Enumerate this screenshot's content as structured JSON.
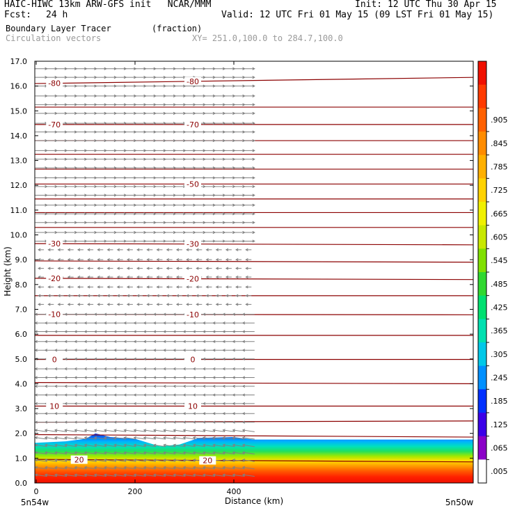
{
  "header": {
    "title": "HAIC-HIWC 13km ARW-GFS init   NCAR/MMM",
    "init": "Init: 12 UTC Thu 30 Apr 15",
    "fcst_label": "Fcst:",
    "fcst_value": "24 h",
    "valid": "Valid: 12 UTC Fri 01 May 15 (09 LST Fri 01 May 15)",
    "field_name": "Boundary Layer Tracer",
    "field_units": "(fraction)",
    "vector_name": "Circulation vectors",
    "xsec": "XY= 251.0,100.0 to 284.7,100.0"
  },
  "colors": {
    "contour": "#8b0000",
    "vector": "#808080",
    "colorbar": [
      "#ffffff",
      "#8b00c8",
      "#3b00e8",
      "#0030ff",
      "#0090ff",
      "#00c8e8",
      "#00e0b0",
      "#00e070",
      "#30d830",
      "#80e000",
      "#c8e800",
      "#f0f000",
      "#ffd200",
      "#ffb000",
      "#ff8c00",
      "#ff6000",
      "#ff3a00",
      "#f01000"
    ]
  },
  "chart_data": {
    "type": "cross-section",
    "xlabel": "Distance (km)",
    "ylabel": "Height (km)",
    "xlim": [
      0,
      440
    ],
    "ylim": [
      0.0,
      17.0
    ],
    "x_ticks": [
      0,
      200,
      400
    ],
    "x_tick_labels": [
      "0",
      "200",
      "400"
    ],
    "x_end_labels": [
      "5n54w",
      "5n50w"
    ],
    "y_ticks": [
      0.0,
      1.0,
      2.0,
      3.0,
      4.0,
      5.0,
      6.0,
      7.0,
      8.0,
      9.0,
      10.0,
      11.0,
      12.0,
      13.0,
      14.0,
      15.0,
      16.0,
      17.0
    ],
    "y_tick_labels": [
      "0.0",
      "1.0",
      "2.0",
      "3.0",
      "4.0",
      "5.0",
      "6.0",
      "7.0",
      "8.0",
      "9.0",
      "10.0",
      "11.0",
      "12.0",
      "13.0",
      "14.0",
      "15.0",
      "16.0",
      "17.0"
    ],
    "colorbar_labels": [
      ".005",
      ".065",
      ".125",
      ".185",
      ".245",
      ".305",
      ".365",
      ".425",
      ".485",
      ".545",
      ".605",
      ".665",
      ".725",
      ".785",
      ".845",
      ".905"
    ],
    "colorbar_levels": [
      0.005,
      0.065,
      0.125,
      0.185,
      0.245,
      0.305,
      0.365,
      0.425,
      0.485,
      0.545,
      0.605,
      0.665,
      0.725,
      0.785,
      0.845,
      0.905
    ],
    "tracer_top_km": [
      {
        "x": 0,
        "z": 1.62
      },
      {
        "x": 60,
        "z": 1.68
      },
      {
        "x": 100,
        "z": 1.78
      },
      {
        "x": 120,
        "z": 2.0
      },
      {
        "x": 150,
        "z": 1.85
      },
      {
        "x": 200,
        "z": 1.78
      },
      {
        "x": 250,
        "z": 1.48
      },
      {
        "x": 290,
        "z": 1.55
      },
      {
        "x": 330,
        "z": 1.82
      },
      {
        "x": 400,
        "z": 1.85
      },
      {
        "x": 440,
        "z": 1.75
      }
    ],
    "temperature_contours": [
      {
        "label": "20",
        "z0": 0.95,
        "z1": 0.85,
        "label_x": [
          70,
          330
        ]
      },
      {
        "label": "",
        "z0": 1.95,
        "z1": 1.85,
        "label_x": []
      },
      {
        "label": "",
        "z0": 2.45,
        "z1": 2.5,
        "label_x": []
      },
      {
        "label": "10",
        "z0": 3.1,
        "z1": 3.1,
        "label_x": [
          20,
          300
        ]
      },
      {
        "label": "",
        "z0": 4.05,
        "z1": 4.0,
        "label_x": []
      },
      {
        "label": "0",
        "z0": 4.98,
        "z1": 4.98,
        "label_x": [
          20,
          300
        ]
      },
      {
        "label": "",
        "z0": 5.95,
        "z1": 5.95,
        "label_x": []
      },
      {
        "label": "-10",
        "z0": 6.8,
        "z1": 6.78,
        "label_x": [
          20,
          300
        ]
      },
      {
        "label": "",
        "z0": 7.55,
        "z1": 7.55,
        "label_x": []
      },
      {
        "label": "-20",
        "z0": 8.25,
        "z1": 8.2,
        "label_x": [
          20,
          300
        ]
      },
      {
        "label": "",
        "z0": 8.95,
        "z1": 8.9,
        "label_x": []
      },
      {
        "label": "-30",
        "z0": 9.65,
        "z1": 9.6,
        "label_x": [
          20,
          300
        ]
      },
      {
        "label": "",
        "z0": 10.3,
        "z1": 10.3,
        "label_x": []
      },
      {
        "label": "",
        "z0": 10.9,
        "z1": 10.9,
        "label_x": []
      },
      {
        "label": "",
        "z0": 11.45,
        "z1": 11.45,
        "label_x": []
      },
      {
        "label": "-50",
        "z0": 12.05,
        "z1": 12.05,
        "label_x": [
          300
        ]
      },
      {
        "label": "",
        "z0": 12.65,
        "z1": 12.65,
        "label_x": []
      },
      {
        "label": "",
        "z0": 13.25,
        "z1": 13.25,
        "label_x": []
      },
      {
        "label": "",
        "z0": 13.8,
        "z1": 13.8,
        "label_x": []
      },
      {
        "label": "-70",
        "z0": 14.45,
        "z1": 14.45,
        "label_x": [
          20,
          300
        ]
      },
      {
        "label": "",
        "z0": 15.15,
        "z1": 15.15,
        "label_x": []
      },
      {
        "label": "-80",
        "z0": 16.1,
        "z1": 16.35,
        "label_x": [
          20,
          300
        ]
      }
    ],
    "vectors": {
      "rows_km": [
        0.3,
        0.6,
        0.9,
        1.2,
        1.5,
        1.8,
        2.1,
        2.45,
        2.8,
        3.2,
        3.55,
        3.9,
        4.25,
        4.6,
        5.0,
        5.35,
        5.7,
        6.1,
        6.45,
        6.8,
        7.2,
        7.55,
        7.9,
        8.3,
        8.65,
        9.0,
        9.4,
        9.75,
        10.1,
        10.5,
        10.85,
        11.2,
        11.6,
        11.95,
        12.3,
        12.7,
        13.05,
        13.4,
        13.8,
        14.15,
        14.5,
        14.9,
        15.25,
        15.6,
        16.0,
        16.35,
        16.7
      ],
      "cols_km": [
        10,
        30,
        50,
        70,
        90,
        110,
        130,
        150,
        170,
        190,
        210,
        230,
        250,
        270,
        290,
        310,
        330,
        350,
        370,
        390,
        410,
        430
      ],
      "direction_by_height": [
        {
          "z_max": 2.3,
          "dir": "W",
          "dz": 0.15
        },
        {
          "z_max": 7.0,
          "dir": "W",
          "dz": 0.0
        },
        {
          "z_max": 9.6,
          "dir": "weak",
          "dz": 0.0
        },
        {
          "z_max": 17.0,
          "dir": "E",
          "dz": 0.0
        }
      ]
    },
    "grid": false,
    "colorbar_position": "right"
  }
}
